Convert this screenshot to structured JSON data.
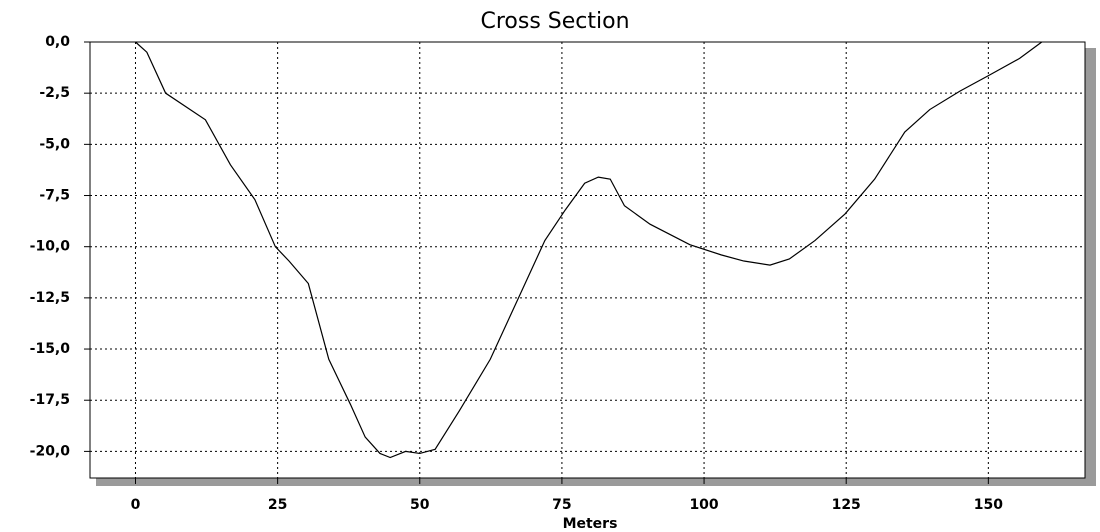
{
  "chart_data": {
    "type": "line",
    "title": "Cross Section",
    "x_label": "Meters",
    "x": [
      0,
      2,
      5.3,
      12.3,
      16.7,
      21,
      24.6,
      27,
      30.4,
      34,
      37.8,
      40.4,
      43,
      44.8,
      47.5,
      50,
      52.7,
      57,
      62.4,
      67.7,
      72,
      75.6,
      79,
      81.4,
      83.5,
      86,
      90.5,
      97.5,
      103,
      107,
      111.6,
      115,
      119.5,
      124.8,
      130,
      135.3,
      139.7,
      145,
      150.3,
      155.5,
      159.4
    ],
    "series": [
      {
        "name": "Cross Section",
        "color": "#000000",
        "values": [
          0,
          -0.5,
          -2.5,
          -3.8,
          -6.0,
          -7.7,
          -10.0,
          -10.7,
          -11.8,
          -15.5,
          -17.7,
          -19.3,
          -20.1,
          -20.3,
          -20.0,
          -20.1,
          -19.9,
          -18.0,
          -15.5,
          -12.3,
          -9.7,
          -8.2,
          -6.9,
          -6.6,
          -6.7,
          -8.0,
          -8.9,
          -9.9,
          -10.4,
          -10.7,
          -10.9,
          -10.6,
          -9.7,
          -8.4,
          -6.7,
          -4.4,
          -3.3,
          -2.4,
          -1.6,
          -0.8,
          0
        ]
      }
    ],
    "xlim": [
      -8,
      167
    ],
    "ylim": [
      -21.3,
      0
    ],
    "xticks": [
      0,
      25,
      50,
      75,
      100,
      125,
      150
    ],
    "yticks": [
      {
        "value": 0,
        "label": "0,0"
      },
      {
        "value": -2.5,
        "label": "-2,5"
      },
      {
        "value": -5,
        "label": "-5,0"
      },
      {
        "value": -7.5,
        "label": "-7,5"
      },
      {
        "value": -10,
        "label": "-10,0"
      },
      {
        "value": -12.5,
        "label": "-12,5"
      },
      {
        "value": -15,
        "label": "-15,0"
      },
      {
        "value": -17.5,
        "label": "-17,5"
      },
      {
        "value": -20,
        "label": "-20,0"
      }
    ],
    "grid": true
  }
}
